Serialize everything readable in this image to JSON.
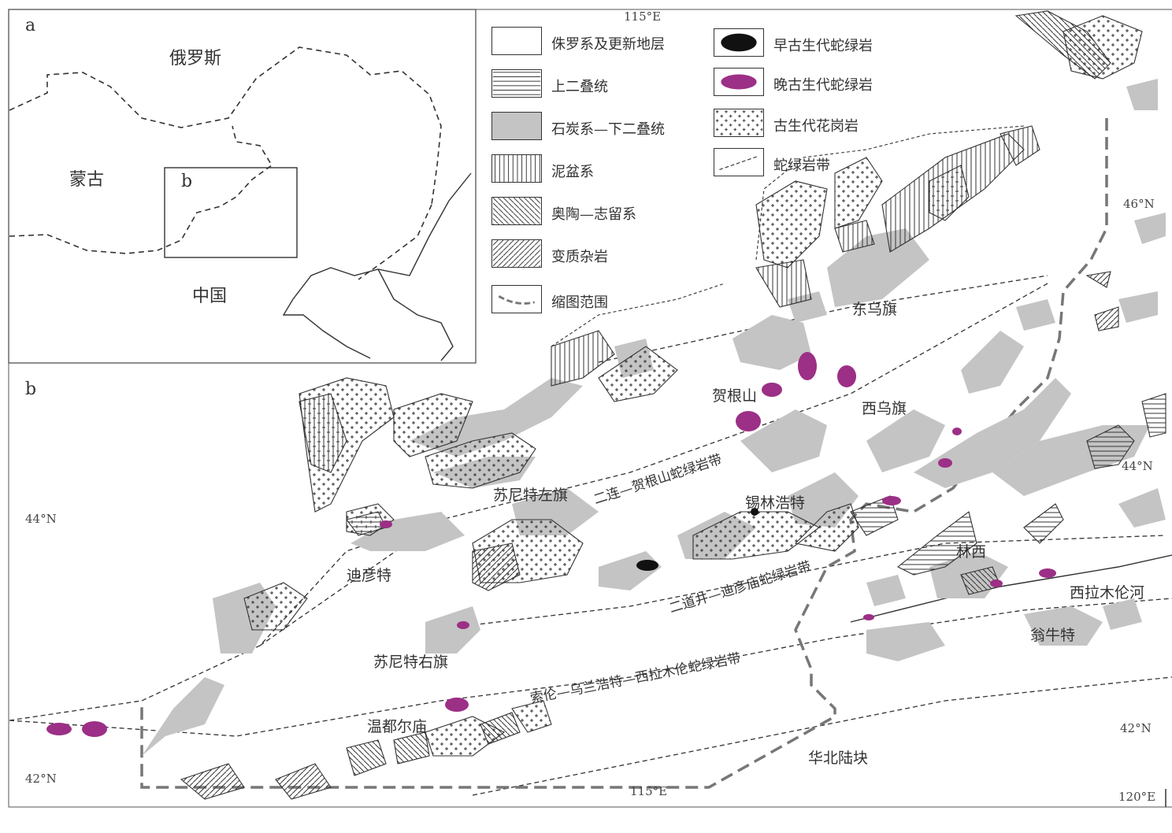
{
  "inset": {
    "panel_label": "a",
    "box_label": "b",
    "countries": [
      "俄罗斯",
      "蒙古",
      "中国"
    ]
  },
  "main": {
    "panel_label": "b",
    "places": [
      "东乌旗",
      "贺根山",
      "西乌旗",
      "苏尼特左旗",
      "锡林浩特",
      "迪彦特",
      "苏尼特右旗",
      "温都尔庙",
      "林西",
      "西拉木伦河",
      "翁牛特",
      "华北陆块"
    ],
    "belts": [
      "二连—贺根山蛇绿岩带",
      "二道井—迪彦庙蛇绿岩带",
      "索伦—乌兰浩特—西拉木伦蛇绿岩带"
    ],
    "coords": [
      "115°E",
      "46°N",
      "44°N",
      "44°N",
      "42°N",
      "42°N",
      "115°E",
      "120°E"
    ]
  },
  "legend": [
    {
      "label": "侏罗系及更新地层",
      "pattern": "blank"
    },
    {
      "label": "上二叠统",
      "pattern": "horizontal"
    },
    {
      "label": "石炭系—下二叠统",
      "pattern": "gray"
    },
    {
      "label": "泥盆系",
      "pattern": "vertical"
    },
    {
      "label": "奥陶—志留系",
      "pattern": "backslash"
    },
    {
      "label": "变质杂岩",
      "pattern": "slash"
    },
    {
      "label": "缩图范围",
      "pattern": "dashline"
    },
    {
      "label": "早古生代蛇绿岩",
      "pattern": "black-blob"
    },
    {
      "label": "晚古生代蛇绿岩",
      "pattern": "purple-blob"
    },
    {
      "label": "古生代花岗岩",
      "pattern": "cross"
    },
    {
      "label": "蛇绿岩带",
      "pattern": "thin-dash"
    }
  ],
  "colors": {
    "late_ophiolite": "#9c2f86",
    "early_ophiolite": "#111111",
    "carboniferous": "#c4c4c4",
    "border": "#333333"
  }
}
